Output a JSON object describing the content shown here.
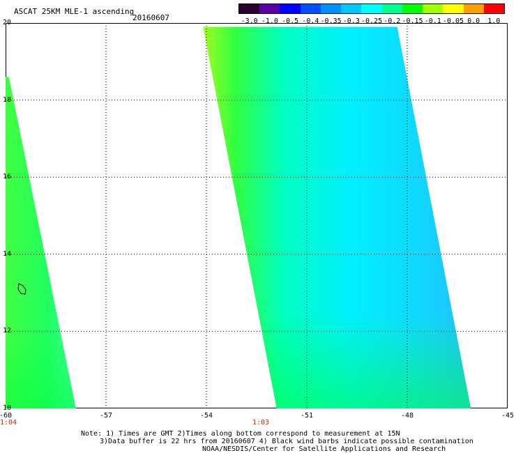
{
  "header": {
    "title": "ASCAT 25KM MLE-1 ascending",
    "date": "20160607"
  },
  "colorbar": {
    "labels": [
      "-3.0",
      "-1.0",
      "-0.5",
      "-0.4",
      "-0.35",
      "-0.3",
      "-0.25",
      "-0.2",
      "-0.15",
      "-0.1",
      "-0.05",
      "0.0",
      "1.0"
    ],
    "colors": [
      "#2a0030",
      "#5a00a8",
      "#0000ff",
      "#0050ff",
      "#0090ff",
      "#00c8ff",
      "#00ffff",
      "#00ff90",
      "#00ff00",
      "#a0ff00",
      "#ffff00",
      "#ffa000",
      "#ff0000"
    ]
  },
  "map": {
    "lat_labels": [
      "20",
      "18",
      "16",
      "14",
      "12",
      "10"
    ],
    "lon_labels": [
      "-60",
      "-57",
      "-54",
      "-51",
      "-48",
      "-45"
    ],
    "lat_range": [
      10,
      20
    ],
    "lon_range": [
      -60,
      -45
    ],
    "times": [
      {
        "label": "1:04",
        "lon": -60
      },
      {
        "label": "1:03",
        "lon": -52.5
      }
    ],
    "swaths": [
      {
        "name": "west-swath",
        "lat_top": 18.6,
        "lat_bottom": 10,
        "lon_top_left": -60,
        "lon_top_right": -59.9,
        "lon_bottom_left": -60,
        "lon_bottom_right": -57.9
      },
      {
        "name": "east-swath",
        "lat_top": 19.9,
        "lat_bottom": 10,
        "lon_top_left": -54.1,
        "lon_top_right": -48.3,
        "lon_bottom_left": -51.9,
        "lon_bottom_right": -46.1
      }
    ]
  },
  "notes": {
    "line1": "Note: 1) Times are GMT 2)Times along bottom correspond to measurement at 15N",
    "line2": "3)Data buffer is 22 hrs from 20160607 4) Black wind barbs indicate possible contamination",
    "line3": "NOAA/NESDIS/Center for Satellite Applications and Research"
  }
}
